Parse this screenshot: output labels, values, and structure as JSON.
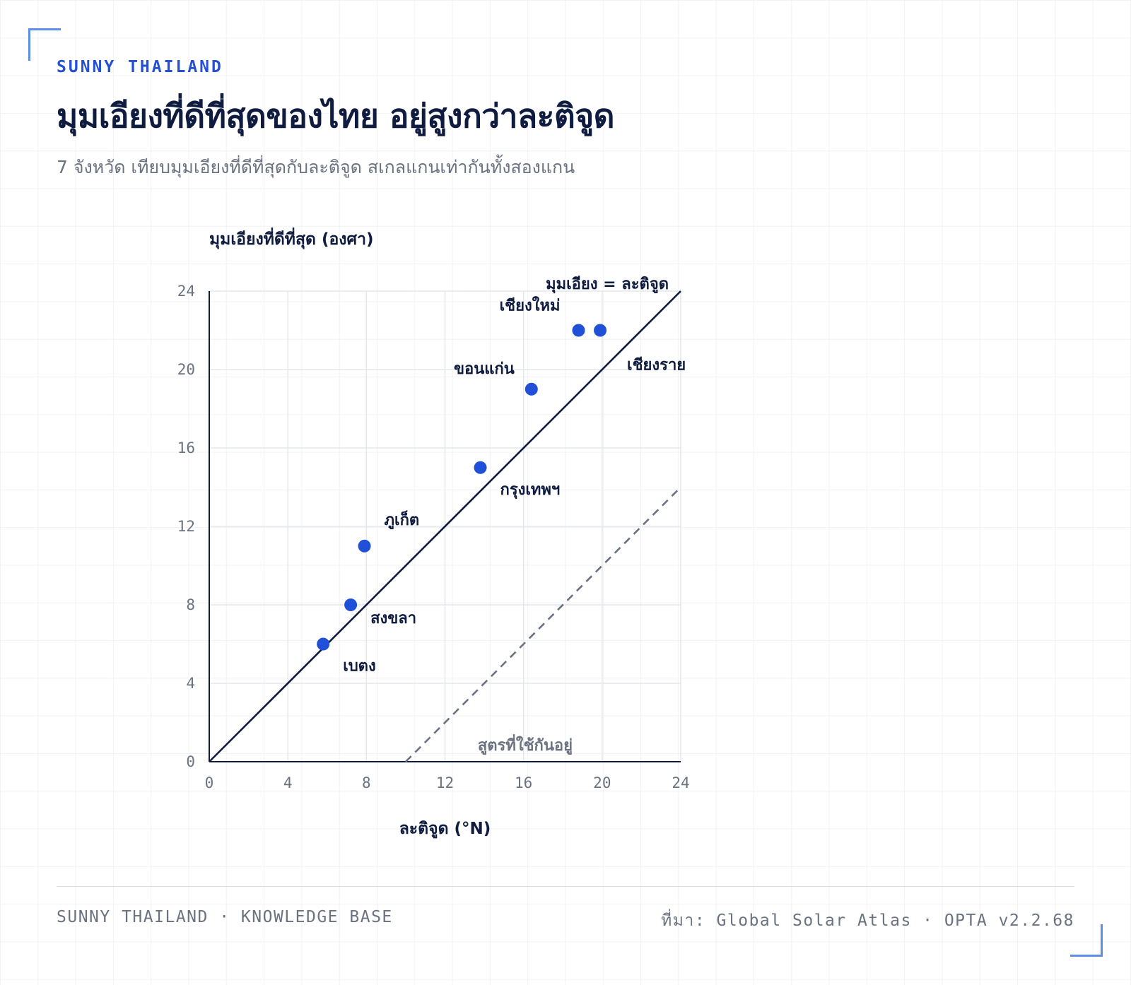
{
  "header": {
    "eyebrow": "SUNNY THAILAND",
    "title": "มุมเอียงที่ดีที่สุดของไทย อยู่สูงกว่าละติจูด",
    "subtitle": "7 จังหวัด เทียบมุมเอียงที่ดีที่สุดกับละติจูด สเกลแกนเท่ากันทั้งสองแกน"
  },
  "footer": {
    "left": "SUNNY THAILAND · KNOWLEDGE BASE",
    "right": "ที่มา: Global Solar Atlas · OPTA v2.2.68"
  },
  "colors": {
    "accent": "#2450d6",
    "point": "#2150d8",
    "ink": "#0f1c3f",
    "muted": "#6b7280",
    "grid": "#e5e7eb",
    "dashed": "#6b7280"
  },
  "chart_data": {
    "type": "scatter",
    "xlabel": "ละติจูด (°N)",
    "ylabel": "มุมเอียงที่ดีที่สุด (องศา)",
    "xlim": [
      0,
      24
    ],
    "ylim": [
      0,
      24
    ],
    "xticks": [
      0,
      4,
      8,
      12,
      16,
      20,
      24
    ],
    "yticks": [
      0,
      4,
      8,
      12,
      16,
      20,
      24
    ],
    "grid": true,
    "points": [
      {
        "name": "เบตง",
        "x": 5.8,
        "y": 6
      },
      {
        "name": "สงขลา",
        "x": 7.2,
        "y": 8
      },
      {
        "name": "ภูเก็ต",
        "x": 7.9,
        "y": 11
      },
      {
        "name": "กรุงเทพฯ",
        "x": 13.8,
        "y": 15
      },
      {
        "name": "ขอนแก่น",
        "x": 16.4,
        "y": 19
      },
      {
        "name": "เชียงใหม่",
        "x": 18.8,
        "y": 22
      },
      {
        "name": "เชียงราย",
        "x": 19.9,
        "y": 22
      }
    ],
    "reference_lines": [
      {
        "label": "มุมเอียง = ละติจูด",
        "style": "solid",
        "from": [
          0,
          0
        ],
        "to": [
          24,
          24
        ]
      },
      {
        "label": "สูตรที่ใช้กันอยู่",
        "style": "dashed",
        "from": [
          10,
          0
        ],
        "to": [
          24,
          14
        ]
      }
    ]
  }
}
